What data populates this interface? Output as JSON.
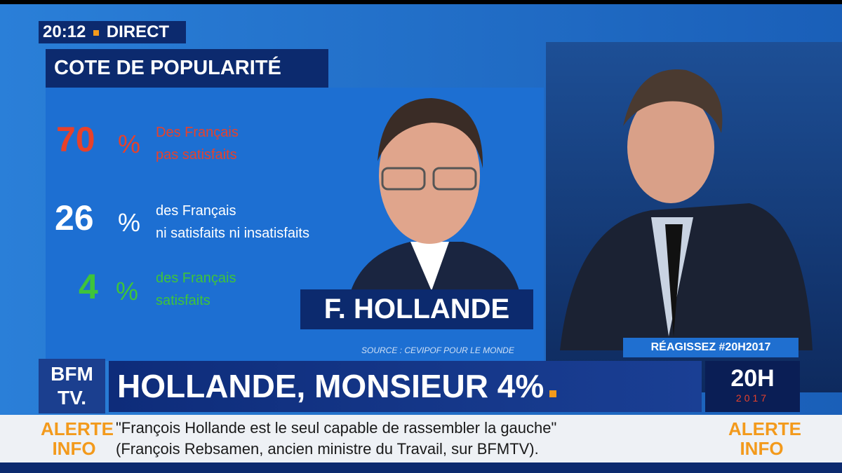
{
  "status": {
    "time": "20:12",
    "live": "DIRECT"
  },
  "panel": {
    "title": "COTE DE POPULARITÉ",
    "stats": [
      {
        "value": "70",
        "unit": "%",
        "lines": [
          "Des Français",
          "pas satisfaits"
        ]
      },
      {
        "value": "26",
        "unit": "%",
        "lines": [
          "des Français",
          "ni satisfaits ni insatisfaits"
        ]
      },
      {
        "value": "4",
        "unit": "%",
        "lines": [
          "des Français",
          "satisfaits"
        ]
      }
    ],
    "name": "F. HOLLANDE",
    "source": "SOURCE : CEVIPOF POUR LE MONDE"
  },
  "hashtag": "RÉAGISSEZ #20H2017",
  "channel": {
    "line1": "BFM",
    "line2": "TV."
  },
  "headline": "HOLLANDE, MONSIEUR 4%",
  "show": {
    "title": "20H",
    "year": "2017"
  },
  "ticker": {
    "badge": [
      "ALERTE",
      "INFO"
    ],
    "lines": [
      "\"François Hollande est le seul capable de rassembler la gauche\"",
      "(François Rebsamen, ancien ministre du Travail, sur BFMTV)."
    ]
  }
}
